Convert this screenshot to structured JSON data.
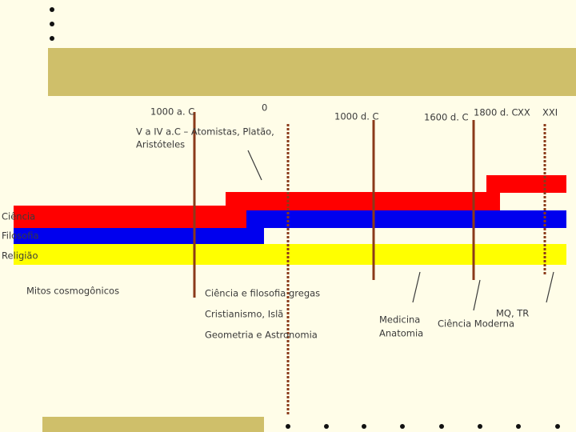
{
  "timeline": {
    "eras": [
      "1000 a. C",
      "0",
      "1000 d. C",
      "1600 d. C",
      "1800 d. C",
      "XX",
      "XXI"
    ],
    "note": [
      "V a IV a.C – Atomistas, Platão,",
      "Aristóteles"
    ],
    "tracks": [
      "Ciência",
      "Filosofia",
      "Religião"
    ],
    "annotations": [
      "Mitos cosmogônicos",
      "Ciência e filosofia gregas",
      "Cristianismo, Islã",
      "Geometria e Astronomia",
      "Medicina",
      "Anatomia",
      "MQ, TR",
      "Ciência Moderna"
    ]
  }
}
